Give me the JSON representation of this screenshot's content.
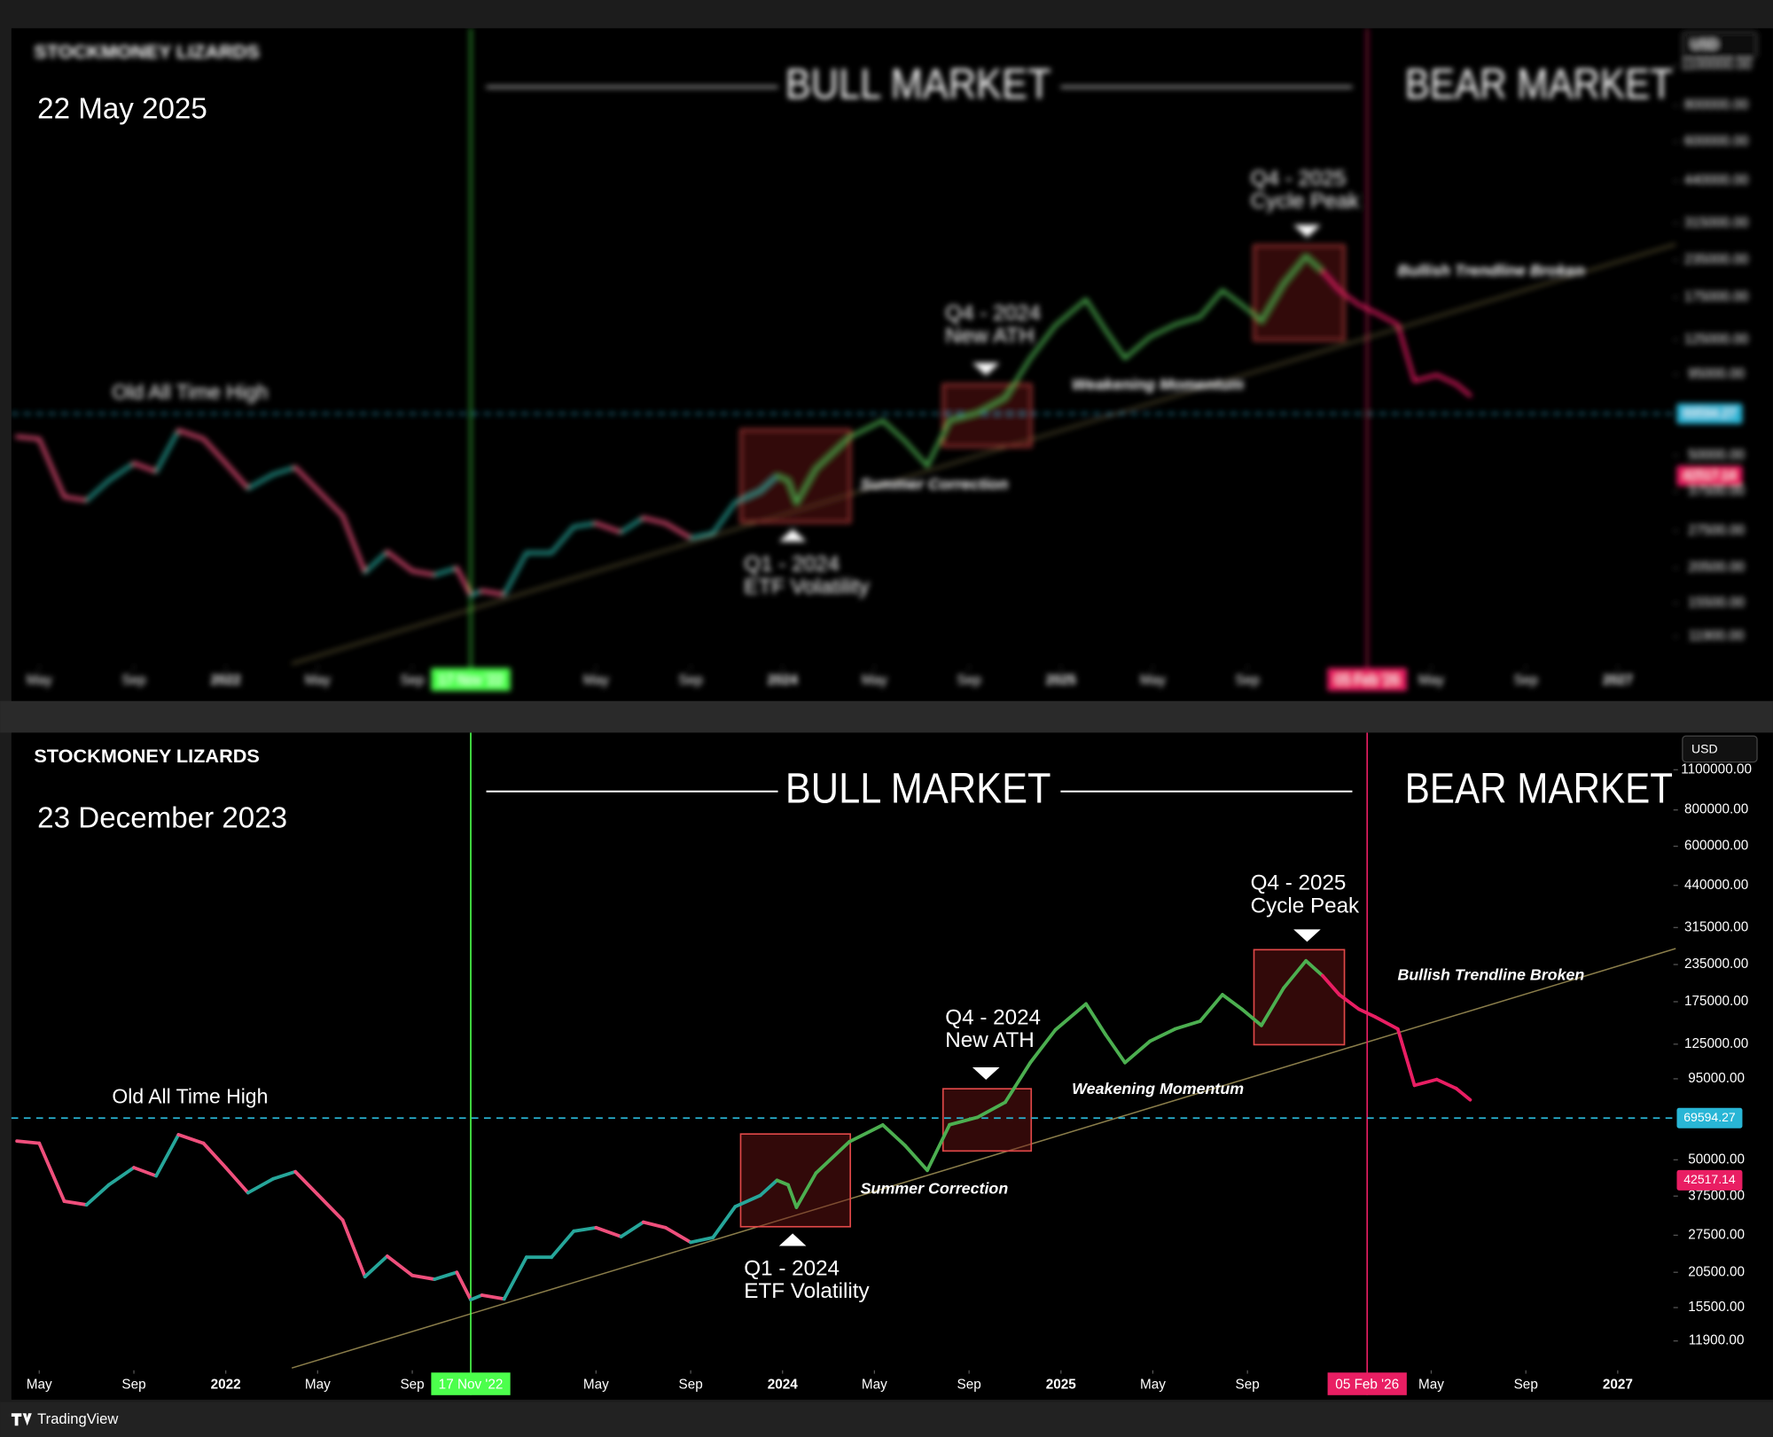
{
  "chart_data": [
    {
      "type": "line",
      "title": "22 May 2025"
    },
    {
      "type": "line",
      "title": "STOCKMONEY LIZARDS",
      "subtitle": "23 December 2023",
      "currency": "USD",
      "log_scale": true,
      "xlim": [
        2021.23,
        2027.2
      ],
      "ylim": [
        9600,
        1450000
      ],
      "xticks": [
        {
          "value": 2021.33,
          "label": "May"
        },
        {
          "value": 2021.67,
          "label": "Sep"
        },
        2022,
        {
          "value": 2022.33,
          "label": "May"
        },
        {
          "value": 2022.67,
          "label": "Sep"
        },
        {
          "value": 2022.88,
          "label": "17 Nov '22",
          "color": "#4cff4c"
        },
        {
          "value": 2023.33,
          "label": "May"
        },
        {
          "value": 2023.67,
          "label": "Sep"
        },
        2024,
        {
          "value": 2024.33,
          "label": "May"
        },
        {
          "value": 2024.67,
          "label": "Sep"
        },
        2025,
        {
          "value": 2025.33,
          "label": "May"
        },
        {
          "value": 2025.67,
          "label": "Sep"
        },
        {
          "value": 2026.1,
          "label": "05 Feb '26",
          "color": "#e91e63"
        },
        {
          "value": 2026.33,
          "label": "May"
        },
        {
          "value": 2026.67,
          "label": "Sep"
        },
        2027
      ],
      "yticks": [
        {
          "value": 1100000,
          "label": "1100000.00"
        },
        {
          "value": 800000,
          "label": "800000.00"
        },
        {
          "value": 600000,
          "label": "600000.00"
        },
        {
          "value": 440000,
          "label": "440000.00"
        },
        {
          "value": 315000,
          "label": "315000.00"
        },
        {
          "value": 235000,
          "label": "235000.00"
        },
        {
          "value": 175000,
          "label": "175000.00"
        },
        {
          "value": 125000,
          "label": "125000.00"
        },
        {
          "value": 95000,
          "label": "95000.00"
        },
        {
          "value": 50000,
          "label": "50000.00"
        },
        {
          "value": 37500,
          "label": "37500.00"
        },
        {
          "value": 27500,
          "label": "27500.00"
        },
        {
          "value": 20500,
          "label": "20500.00"
        },
        {
          "value": 15500,
          "label": "15500.00"
        },
        {
          "value": 11900,
          "label": "11900.00"
        }
      ],
      "hlines": [
        {
          "value": 69594.27,
          "label": "69594.27",
          "color": "#29b6d6"
        }
      ],
      "price_label": {
        "value": 42517.14,
        "label": "42517.14",
        "color": "#e91e63"
      },
      "annotations": [
        "BULL MARKET",
        "BEAR MARKET",
        "Old All Time High",
        "Q1 - 2024",
        "ETF Volatility",
        "Q4 - 2024",
        "New ATH",
        "Q4 - 2025",
        "Cycle Peak",
        "Summer Correction",
        "Weakening Momentum",
        "Bullish Trendline Broken"
      ],
      "x": [
        2021.25,
        2021.33,
        2021.42,
        2021.5,
        2021.58,
        2021.67,
        2021.75,
        2021.83,
        2021.92,
        2022.0,
        2022.08,
        2022.17,
        2022.25,
        2022.33,
        2022.42,
        2022.5,
        2022.58,
        2022.67,
        2022.75,
        2022.83,
        2022.88,
        2022.92,
        2023.0,
        2023.08,
        2023.17,
        2023.25,
        2023.33,
        2023.42,
        2023.5,
        2023.58,
        2023.67,
        2023.75,
        2023.83,
        2023.92,
        2023.98,
        2024.02,
        2024.05,
        2024.12,
        2024.24,
        2024.36,
        2024.44,
        2024.52,
        2024.6,
        2024.7,
        2024.8,
        2024.89,
        2024.98,
        2025.09,
        2025.16,
        2025.23,
        2025.32,
        2025.41,
        2025.5,
        2025.58,
        2025.65,
        2025.72,
        2025.8,
        2025.88,
        2025.94,
        2026.0,
        2026.07,
        2026.13,
        2026.21,
        2026.27,
        2026.35,
        2026.42,
        2026.47
      ],
      "series": [
        {
          "up_color": "#26a69a",
          "down_color": "#ef4f7c",
          "values": [
            58000,
            57000,
            36000,
            35000,
            41000,
            47000,
            44000,
            61000,
            57000,
            47000,
            38500,
            43000,
            45500,
            38000,
            31000,
            19800,
            23300,
            20000,
            19400,
            20500,
            16500,
            17100,
            16600,
            23100,
            23100,
            28400,
            29200,
            27200,
            30500,
            29200,
            26000,
            27000,
            34500,
            37700,
            42500,
            null,
            null,
            null,
            null,
            null,
            null,
            null,
            null,
            null,
            null,
            null,
            null,
            null,
            null,
            null,
            null,
            null,
            null,
            null,
            null,
            null,
            null,
            null,
            null,
            null,
            null,
            null,
            null,
            null,
            null,
            null,
            null
          ]
        },
        {
          "up_color": "#4caf50",
          "down_color": "#4caf50",
          "values": [
            null,
            null,
            null,
            null,
            null,
            null,
            null,
            null,
            null,
            null,
            null,
            null,
            null,
            null,
            null,
            null,
            null,
            null,
            null,
            null,
            null,
            null,
            null,
            null,
            null,
            null,
            null,
            null,
            null,
            null,
            null,
            null,
            null,
            null,
            42500,
            41000,
            34300,
            45000,
            57700,
            65900,
            56000,
            46000,
            66000,
            70000,
            78900,
            108000,
            140000,
            172000,
            135000,
            108000,
            128000,
            141000,
            150000,
            185000,
            165000,
            145000,
            195000,
            242000,
            215000,
            null,
            null,
            null,
            null,
            null,
            null,
            null,
            null
          ]
        },
        {
          "up_color": "#e91e63",
          "down_color": "#e91e63",
          "values": [
            null,
            null,
            null,
            null,
            null,
            null,
            null,
            null,
            null,
            null,
            null,
            null,
            null,
            null,
            null,
            null,
            null,
            null,
            null,
            null,
            null,
            null,
            null,
            null,
            null,
            null,
            null,
            null,
            null,
            null,
            null,
            null,
            null,
            null,
            null,
            null,
            null,
            null,
            null,
            null,
            null,
            null,
            null,
            null,
            null,
            null,
            null,
            null,
            null,
            null,
            null,
            null,
            null,
            null,
            null,
            null,
            null,
            null,
            215000,
            185000,
            165000,
            155000,
            141000,
            90200,
            94500,
            88000,
            80400
          ]
        }
      ]
    }
  ],
  "footer": {
    "brand": "TradingView"
  }
}
